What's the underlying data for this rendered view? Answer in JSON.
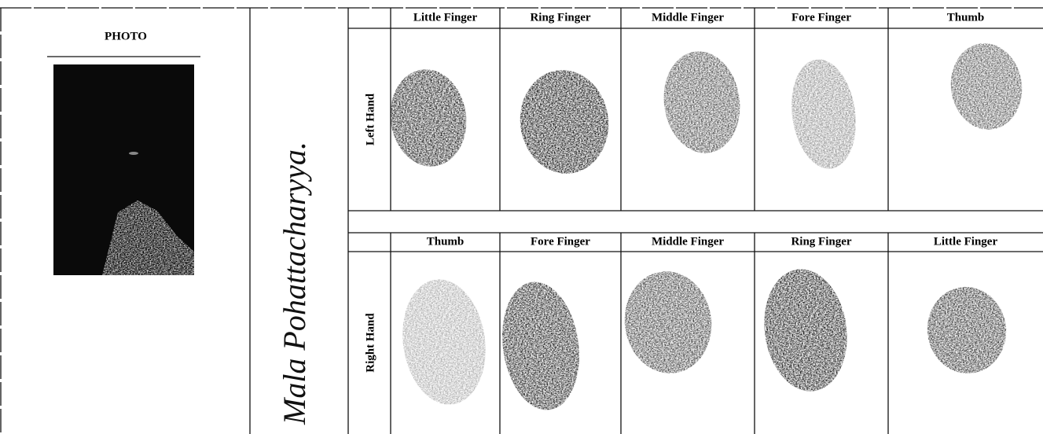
{
  "photo": {
    "label": "PHOTO"
  },
  "signature": "Mala Pohattacharyya.",
  "left_hand": {
    "label": "Left Hand",
    "fingers": [
      "Little Finger",
      "Ring Finger",
      "Middle Finger",
      "Fore Finger",
      "Thumb"
    ]
  },
  "right_hand": {
    "label": "Right Hand",
    "fingers": [
      "Thumb",
      "Fore Finger",
      "Middle Finger",
      "Ring Finger",
      "Little Finger"
    ]
  }
}
